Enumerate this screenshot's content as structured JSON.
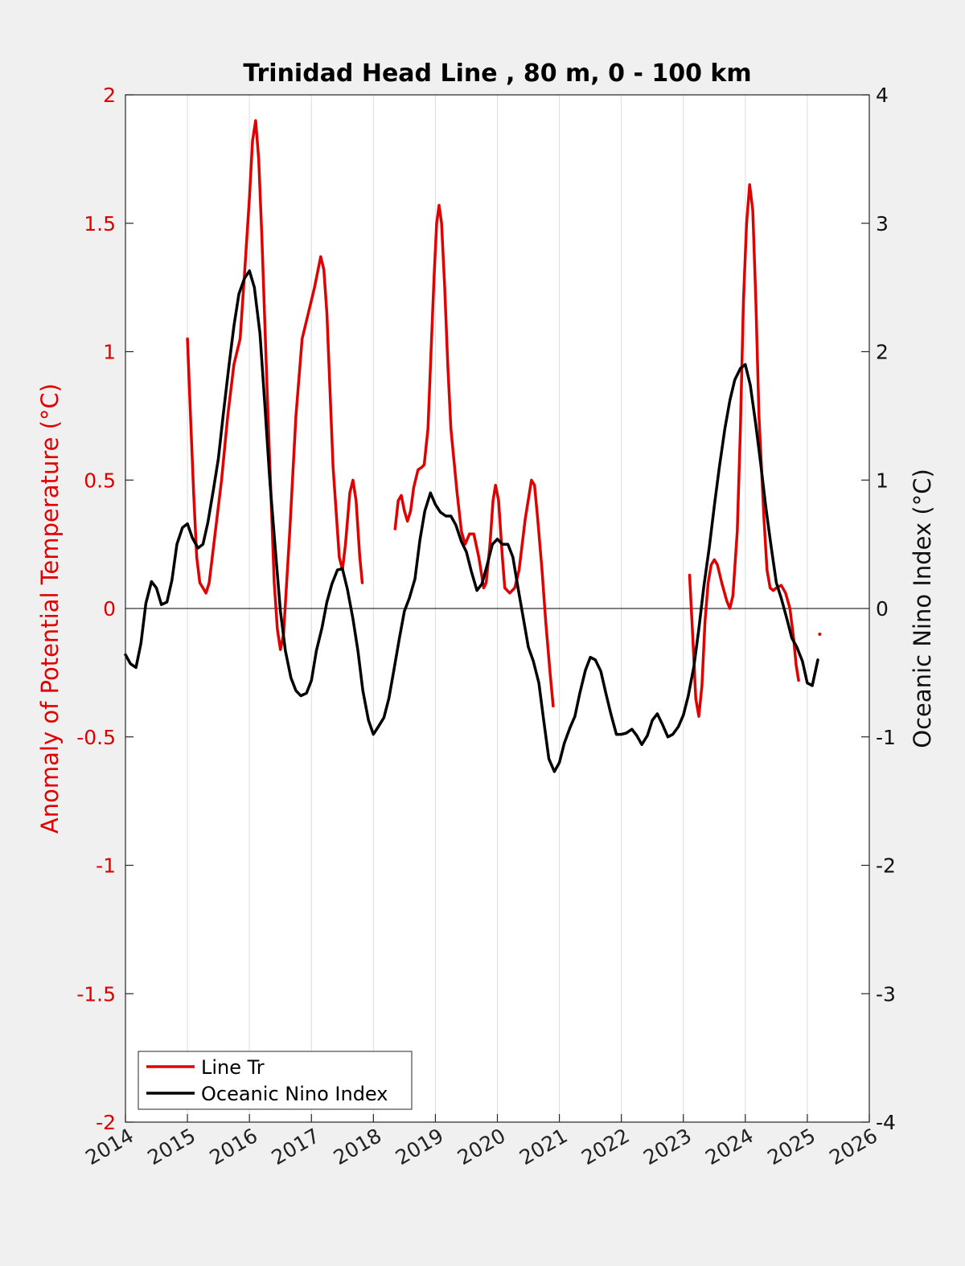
{
  "chart_data": {
    "type": "line",
    "title": "Trinidad Head Line , 80 m, 0 - 100 km",
    "ylabel_left": "Anomaly of Potential Temperature (°C)",
    "ylabel_right": "Oceanic Nino Index (°C)",
    "xlim": [
      2014,
      2026
    ],
    "ylim_left": [
      -2,
      2
    ],
    "ylim_right": [
      -4,
      4
    ],
    "xticks": [
      "2014",
      "2015",
      "2016",
      "2017",
      "2018",
      "2019",
      "2020",
      "2021",
      "2022",
      "2023",
      "2024",
      "2025",
      "2026"
    ],
    "yticks_left": [
      "2",
      "1.5",
      "1",
      "0.5",
      "0",
      "-0.5",
      "-1",
      "-1.5",
      "-2"
    ],
    "yticks_right": [
      "4",
      "3",
      "2",
      "1",
      "0",
      "-1",
      "-2",
      "-3",
      "-4"
    ],
    "grid": "vertical",
    "zero_line": true,
    "legend_position": "bottom-left",
    "colors": {
      "line_tr": "#e00000",
      "oni": "#000000",
      "left_axis": "#e00000"
    },
    "series": [
      {
        "name": "Line Tr",
        "axis": "left",
        "segments": [
          [
            [
              2015.0,
              1.05
            ],
            [
              2015.05,
              0.75
            ],
            [
              2015.1,
              0.45
            ],
            [
              2015.15,
              0.2
            ],
            [
              2015.2,
              0.1
            ],
            [
              2015.3,
              0.06
            ],
            [
              2015.35,
              0.1
            ],
            [
              2015.45,
              0.3
            ],
            [
              2015.55,
              0.5
            ],
            [
              2015.65,
              0.75
            ],
            [
              2015.75,
              0.95
            ],
            [
              2015.85,
              1.05
            ],
            [
              2015.92,
              1.3
            ],
            [
              2016.0,
              1.6
            ],
            [
              2016.05,
              1.82
            ],
            [
              2016.1,
              1.9
            ],
            [
              2016.15,
              1.75
            ],
            [
              2016.2,
              1.45
            ],
            [
              2016.3,
              0.75
            ],
            [
              2016.4,
              0.1
            ],
            [
              2016.45,
              -0.08
            ],
            [
              2016.5,
              -0.16
            ],
            [
              2016.55,
              -0.1
            ],
            [
              2016.65,
              0.3
            ],
            [
              2016.75,
              0.75
            ],
            [
              2016.85,
              1.05
            ],
            [
              2016.95,
              1.15
            ],
            [
              2017.05,
              1.25
            ],
            [
              2017.15,
              1.37
            ],
            [
              2017.2,
              1.32
            ],
            [
              2017.25,
              1.15
            ],
            [
              2017.35,
              0.55
            ],
            [
              2017.45,
              0.2
            ],
            [
              2017.5,
              0.15
            ],
            [
              2017.55,
              0.25
            ],
            [
              2017.62,
              0.45
            ],
            [
              2017.67,
              0.5
            ],
            [
              2017.72,
              0.42
            ],
            [
              2017.78,
              0.2
            ],
            [
              2017.82,
              0.1
            ]
          ],
          [
            [
              2018.35,
              0.31
            ],
            [
              2018.4,
              0.42
            ],
            [
              2018.45,
              0.44
            ],
            [
              2018.5,
              0.38
            ],
            [
              2018.55,
              0.34
            ],
            [
              2018.6,
              0.38
            ],
            [
              2018.65,
              0.47
            ],
            [
              2018.72,
              0.54
            ],
            [
              2018.78,
              0.55
            ],
            [
              2018.82,
              0.56
            ],
            [
              2018.88,
              0.7
            ],
            [
              2018.93,
              1.0
            ],
            [
              2018.98,
              1.3
            ],
            [
              2019.02,
              1.5
            ],
            [
              2019.06,
              1.57
            ],
            [
              2019.1,
              1.5
            ],
            [
              2019.15,
              1.25
            ],
            [
              2019.2,
              0.95
            ],
            [
              2019.25,
              0.7
            ],
            [
              2019.35,
              0.45
            ],
            [
              2019.42,
              0.3
            ],
            [
              2019.48,
              0.25
            ],
            [
              2019.55,
              0.29
            ],
            [
              2019.62,
              0.29
            ],
            [
              2019.7,
              0.2
            ],
            [
              2019.78,
              0.08
            ],
            [
              2019.82,
              0.1
            ],
            [
              2019.88,
              0.25
            ],
            [
              2019.93,
              0.42
            ],
            [
              2019.97,
              0.48
            ],
            [
              2020.02,
              0.42
            ],
            [
              2020.08,
              0.2
            ],
            [
              2020.12,
              0.08
            ],
            [
              2020.2,
              0.06
            ],
            [
              2020.28,
              0.08
            ],
            [
              2020.35,
              0.15
            ],
            [
              2020.45,
              0.35
            ],
            [
              2020.55,
              0.5
            ],
            [
              2020.6,
              0.48
            ],
            [
              2020.65,
              0.35
            ],
            [
              2020.72,
              0.15
            ],
            [
              2020.78,
              -0.05
            ],
            [
              2020.85,
              -0.25
            ],
            [
              2020.9,
              -0.38
            ]
          ],
          [
            [
              2023.1,
              0.13
            ],
            [
              2023.15,
              -0.1
            ],
            [
              2023.2,
              -0.35
            ],
            [
              2023.25,
              -0.42
            ],
            [
              2023.3,
              -0.3
            ],
            [
              2023.35,
              -0.05
            ],
            [
              2023.4,
              0.1
            ],
            [
              2023.45,
              0.17
            ],
            [
              2023.5,
              0.19
            ],
            [
              2023.55,
              0.17
            ],
            [
              2023.62,
              0.1
            ],
            [
              2023.7,
              0.03
            ],
            [
              2023.75,
              0.0
            ],
            [
              2023.8,
              0.05
            ],
            [
              2023.87,
              0.3
            ],
            [
              2023.92,
              0.7
            ],
            [
              2023.97,
              1.2
            ],
            [
              2024.02,
              1.5
            ],
            [
              2024.07,
              1.65
            ],
            [
              2024.12,
              1.55
            ],
            [
              2024.17,
              1.2
            ],
            [
              2024.22,
              0.75
            ],
            [
              2024.3,
              0.35
            ],
            [
              2024.35,
              0.15
            ],
            [
              2024.4,
              0.08
            ],
            [
              2024.45,
              0.07
            ],
            [
              2024.5,
              0.08
            ],
            [
              2024.58,
              0.09
            ],
            [
              2024.65,
              0.06
            ],
            [
              2024.72,
              0.0
            ],
            [
              2024.78,
              -0.12
            ],
            [
              2024.82,
              -0.22
            ],
            [
              2024.86,
              -0.28
            ]
          ],
          [
            [
              2025.2,
              -0.1
            ]
          ]
        ]
      },
      {
        "name": "Oceanic Nino Index",
        "axis": "right",
        "segments": [
          [
            [
              2014.0,
              -0.36
            ],
            [
              2014.08,
              -0.43
            ],
            [
              2014.17,
              -0.46
            ],
            [
              2014.25,
              -0.27
            ],
            [
              2014.33,
              0.04
            ],
            [
              2014.42,
              0.21
            ],
            [
              2014.5,
              0.16
            ],
            [
              2014.58,
              0.03
            ],
            [
              2014.67,
              0.05
            ],
            [
              2014.75,
              0.22
            ],
            [
              2014.83,
              0.5
            ],
            [
              2014.92,
              0.63
            ],
            [
              2015.0,
              0.66
            ],
            [
              2015.08,
              0.55
            ],
            [
              2015.17,
              0.47
            ],
            [
              2015.25,
              0.5
            ],
            [
              2015.33,
              0.67
            ],
            [
              2015.42,
              0.93
            ],
            [
              2015.5,
              1.17
            ],
            [
              2015.58,
              1.52
            ],
            [
              2015.67,
              1.89
            ],
            [
              2015.75,
              2.2
            ],
            [
              2015.83,
              2.45
            ],
            [
              2015.92,
              2.57
            ],
            [
              2016.0,
              2.63
            ],
            [
              2016.08,
              2.5
            ],
            [
              2016.17,
              2.14
            ],
            [
              2016.25,
              1.58
            ],
            [
              2016.33,
              0.99
            ],
            [
              2016.42,
              0.45
            ],
            [
              2016.5,
              -0.02
            ],
            [
              2016.58,
              -0.33
            ],
            [
              2016.67,
              -0.54
            ],
            [
              2016.75,
              -0.64
            ],
            [
              2016.83,
              -0.68
            ],
            [
              2016.92,
              -0.66
            ],
            [
              2017.0,
              -0.56
            ],
            [
              2017.08,
              -0.33
            ],
            [
              2017.17,
              -0.15
            ],
            [
              2017.25,
              0.05
            ],
            [
              2017.33,
              0.19
            ],
            [
              2017.42,
              0.3
            ],
            [
              2017.5,
              0.31
            ],
            [
              2017.58,
              0.15
            ],
            [
              2017.67,
              -0.08
            ],
            [
              2017.75,
              -0.33
            ],
            [
              2017.83,
              -0.64
            ],
            [
              2017.92,
              -0.87
            ],
            [
              2018.0,
              -0.98
            ],
            [
              2018.08,
              -0.92
            ],
            [
              2018.17,
              -0.85
            ],
            [
              2018.25,
              -0.7
            ],
            [
              2018.33,
              -0.48
            ],
            [
              2018.42,
              -0.23
            ],
            [
              2018.5,
              -0.02
            ],
            [
              2018.58,
              0.08
            ],
            [
              2018.67,
              0.23
            ],
            [
              2018.75,
              0.53
            ],
            [
              2018.83,
              0.76
            ],
            [
              2018.92,
              0.9
            ],
            [
              2019.0,
              0.81
            ],
            [
              2019.08,
              0.75
            ],
            [
              2019.17,
              0.72
            ],
            [
              2019.25,
              0.72
            ],
            [
              2019.33,
              0.65
            ],
            [
              2019.42,
              0.52
            ],
            [
              2019.5,
              0.44
            ],
            [
              2019.58,
              0.29
            ],
            [
              2019.67,
              0.14
            ],
            [
              2019.75,
              0.19
            ],
            [
              2019.83,
              0.33
            ],
            [
              2019.92,
              0.5
            ],
            [
              2020.0,
              0.54
            ],
            [
              2020.08,
              0.5
            ],
            [
              2020.17,
              0.5
            ],
            [
              2020.25,
              0.4
            ],
            [
              2020.33,
              0.17
            ],
            [
              2020.42,
              -0.08
            ],
            [
              2020.5,
              -0.3
            ],
            [
              2020.58,
              -0.41
            ],
            [
              2020.67,
              -0.58
            ],
            [
              2020.75,
              -0.88
            ],
            [
              2020.83,
              -1.17
            ],
            [
              2020.92,
              -1.27
            ],
            [
              2021.0,
              -1.2
            ],
            [
              2021.08,
              -1.05
            ],
            [
              2021.17,
              -0.93
            ],
            [
              2021.25,
              -0.84
            ],
            [
              2021.33,
              -0.66
            ],
            [
              2021.42,
              -0.48
            ],
            [
              2021.5,
              -0.38
            ],
            [
              2021.58,
              -0.4
            ],
            [
              2021.67,
              -0.49
            ],
            [
              2021.75,
              -0.66
            ],
            [
              2021.83,
              -0.82
            ],
            [
              2021.92,
              -0.98
            ],
            [
              2022.0,
              -0.98
            ],
            [
              2022.08,
              -0.97
            ],
            [
              2022.17,
              -0.94
            ],
            [
              2022.25,
              -0.99
            ],
            [
              2022.33,
              -1.06
            ],
            [
              2022.42,
              -0.99
            ],
            [
              2022.5,
              -0.87
            ],
            [
              2022.58,
              -0.82
            ],
            [
              2022.67,
              -0.91
            ],
            [
              2022.75,
              -1.0
            ],
            [
              2022.83,
              -0.98
            ],
            [
              2022.92,
              -0.92
            ],
            [
              2023.0,
              -0.83
            ],
            [
              2023.08,
              -0.68
            ],
            [
              2023.17,
              -0.45
            ],
            [
              2023.25,
              -0.16
            ],
            [
              2023.33,
              0.17
            ],
            [
              2023.42,
              0.48
            ],
            [
              2023.5,
              0.8
            ],
            [
              2023.58,
              1.1
            ],
            [
              2023.67,
              1.4
            ],
            [
              2023.75,
              1.62
            ],
            [
              2023.83,
              1.78
            ],
            [
              2023.92,
              1.87
            ],
            [
              2024.0,
              1.9
            ],
            [
              2024.08,
              1.74
            ],
            [
              2024.17,
              1.43
            ],
            [
              2024.25,
              1.12
            ],
            [
              2024.33,
              0.79
            ],
            [
              2024.42,
              0.47
            ],
            [
              2024.5,
              0.2
            ],
            [
              2024.58,
              0.08
            ],
            [
              2024.67,
              -0.08
            ],
            [
              2024.75,
              -0.23
            ],
            [
              2024.83,
              -0.3
            ],
            [
              2024.92,
              -0.41
            ],
            [
              2025.0,
              -0.58
            ],
            [
              2025.08,
              -0.6
            ],
            [
              2025.17,
              -0.4
            ]
          ]
        ]
      }
    ]
  }
}
